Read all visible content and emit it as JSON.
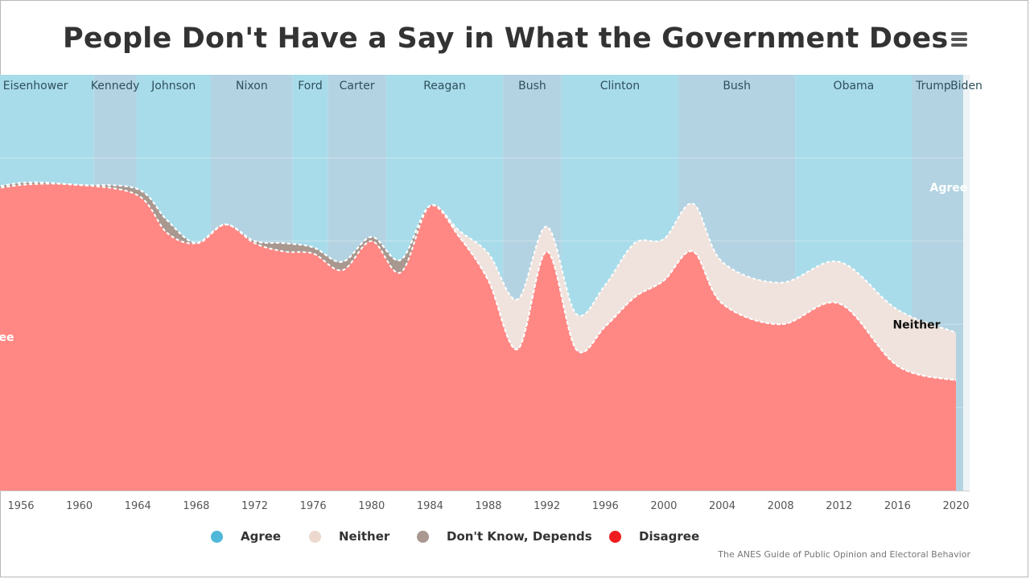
{
  "chart_data": {
    "type": "area",
    "stacking": "percent",
    "title": "People Don't Have a Say in What the Government Does",
    "credit": "The ANES Guide of Public Opinion and Electoral Behavior",
    "xlim": [
      1952,
      2021
    ],
    "ylim": [
      0,
      100
    ],
    "x_ticks": [
      1956,
      1960,
      1964,
      1968,
      1972,
      1976,
      1980,
      1984,
      1988,
      1992,
      1996,
      2000,
      2004,
      2008,
      2012,
      2016,
      2020
    ],
    "grid": "horizontal",
    "legend_position": "bottom",
    "x": [
      1952,
      1956,
      1960,
      1964,
      1966,
      1968,
      1970,
      1972,
      1974,
      1976,
      1978,
      1980,
      1982,
      1984,
      1986,
      1988,
      1990,
      1992,
      1994,
      1996,
      1998,
      2000,
      2002,
      2004,
      2008,
      2012,
      2016,
      2020
    ],
    "series": [
      {
        "name": "Disagree",
        "color": "#ff8884",
        "values": [
          71,
          73.5,
          73.5,
          71,
          62,
          59.5,
          64,
          59.5,
          57.5,
          57,
          53,
          60,
          52.5,
          68.5,
          61,
          50.5,
          34,
          57.5,
          34,
          39.5,
          46.5,
          50.5,
          57.5,
          45,
          40,
          45,
          30,
          26.5
        ]
      },
      {
        "name": "Don't Know, Depends",
        "color": "#a89890",
        "values": [
          0,
          0.5,
          0,
          1.5,
          3,
          0,
          0,
          0.5,
          2,
          1.5,
          2,
          1,
          3,
          0,
          0,
          0,
          0,
          0,
          0,
          0,
          0,
          0,
          0,
          0,
          0,
          0,
          0,
          0
        ]
      },
      {
        "name": "Neither",
        "color": "#f0e3dd",
        "values": [
          0,
          0,
          0,
          0,
          0,
          0,
          0,
          0,
          0,
          0,
          0,
          0,
          0,
          0,
          1.5,
          6.5,
          12,
          6,
          8.5,
          10,
          13,
          10,
          11.5,
          10,
          10,
          10,
          13.5,
          11.5
        ]
      },
      {
        "name": "Agree",
        "color": "#a7d8e6",
        "values": [
          29,
          26,
          26.5,
          27.5,
          35,
          40.5,
          36,
          40,
          40.5,
          41.5,
          45,
          39,
          44.5,
          31.5,
          37.5,
          43,
          54,
          36.5,
          57.5,
          50.5,
          40.5,
          39.5,
          31,
          45,
          50,
          45,
          56.5,
          62
        ]
      }
    ],
    "legend": [
      {
        "name": "Agree",
        "color": "#4fb8d8"
      },
      {
        "name": "Neither",
        "color": "#ecd8cc"
      },
      {
        "name": "Don't Know, Depends",
        "color": "#a89890"
      },
      {
        "name": "Disagree",
        "color": "#ef1d1d"
      }
    ],
    "area_labels": [
      {
        "text": "Agree",
        "year": 2019.5,
        "value": 72,
        "color": "#ffffff"
      },
      {
        "text": "Neither",
        "year": 2017.3,
        "value": 39,
        "color": "#111111"
      },
      {
        "text": "Disagree",
        "year": 1953.6,
        "value": 36,
        "color": "#ffffff"
      }
    ],
    "presidents": [
      {
        "name": "Eisenhower",
        "start": 1953,
        "end": 1961
      },
      {
        "name": "Kennedy",
        "start": 1961,
        "end": 1963.9
      },
      {
        "name": "Johnson",
        "start": 1963.9,
        "end": 1969
      },
      {
        "name": "Nixon",
        "start": 1969,
        "end": 1974.6
      },
      {
        "name": "Ford",
        "start": 1974.6,
        "end": 1977
      },
      {
        "name": "Carter",
        "start": 1977,
        "end": 1981
      },
      {
        "name": "Reagan",
        "start": 1981,
        "end": 1989
      },
      {
        "name": "Bush",
        "start": 1989,
        "end": 1993
      },
      {
        "name": "Clinton",
        "start": 1993,
        "end": 2001
      },
      {
        "name": "Bush",
        "start": 2001,
        "end": 2009
      },
      {
        "name": "Obama",
        "start": 2009,
        "end": 2017
      },
      {
        "name": "Trump",
        "start": 2017,
        "end": 2021
      },
      {
        "name": "Biden",
        "start": 2021,
        "end": 2022
      }
    ],
    "band_colors": [
      "#a8dcea",
      "#b3d3e2"
    ]
  }
}
